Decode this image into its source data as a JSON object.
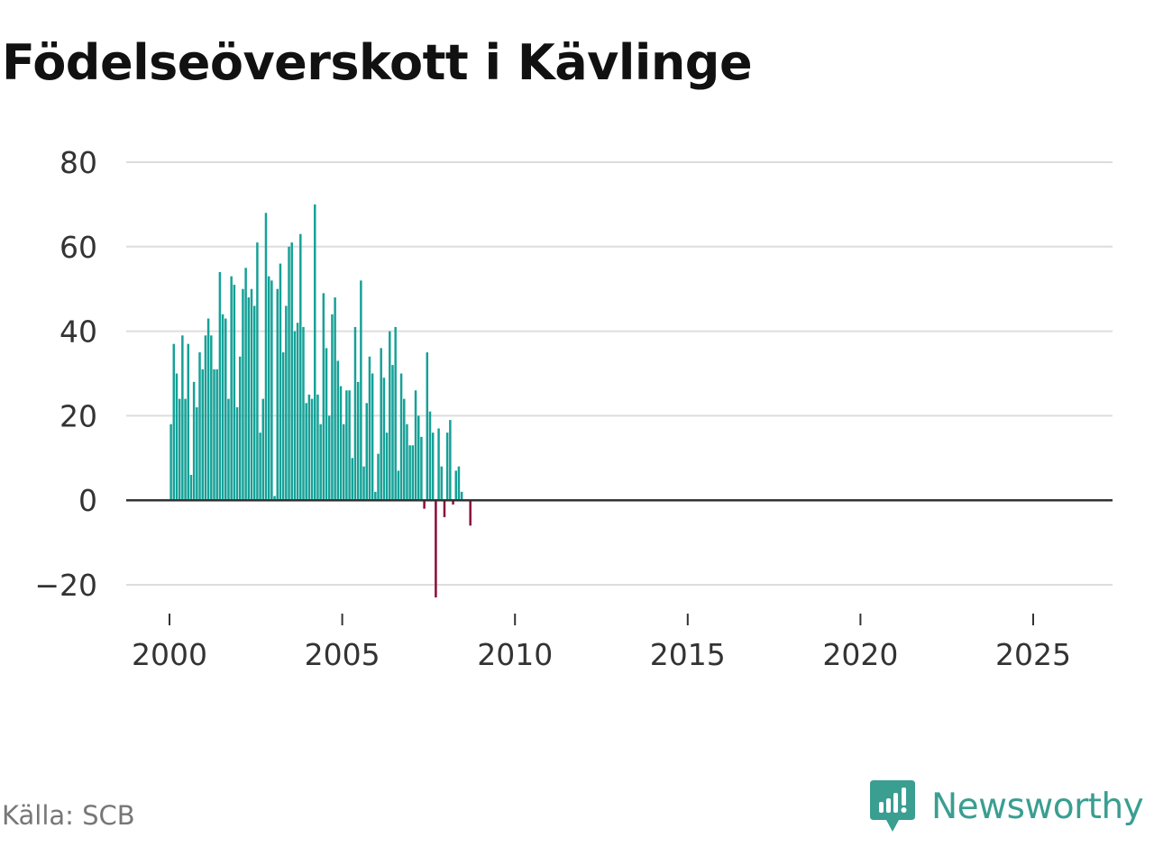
{
  "title": "Födelseöverskott i Kävlinge",
  "source": "Källa: SCB",
  "brand": "Newsworthy",
  "colors": {
    "positive": "#16a197",
    "negative": "#8c0a3a",
    "grid": "#dddddd",
    "zero": "#333333",
    "brand": "#3a9e91"
  },
  "chart_data": {
    "type": "bar",
    "title": "Födelseöverskott i Kävlinge",
    "xlabel": "",
    "ylabel": "",
    "ylim": [
      -25,
      80
    ],
    "xlim": [
      1999.8,
      2027.5
    ],
    "yticks": [
      80,
      60,
      40,
      20,
      0,
      -20
    ],
    "ytick_labels": [
      "80",
      "60",
      "40",
      "20",
      "0",
      "−20"
    ],
    "xticks": [
      2000,
      2005,
      2010,
      2015,
      2020,
      2025
    ],
    "xtick_labels": [
      "2000",
      "2005",
      "2010",
      "2015",
      "2020",
      "2025"
    ],
    "start": "2000-01",
    "frequency": "monthly",
    "grid": true,
    "values": [
      18,
      37,
      30,
      24,
      39,
      24,
      37,
      6,
      28,
      22,
      35,
      31,
      39,
      43,
      39,
      31,
      31,
      54,
      44,
      43,
      24,
      53,
      51,
      22,
      34,
      50,
      55,
      48,
      50,
      46,
      61,
      16,
      24,
      68,
      53,
      52,
      1,
      50,
      56,
      35,
      46,
      60,
      61,
      40,
      42,
      63,
      41,
      23,
      25,
      24,
      70,
      25,
      18,
      49,
      36,
      20,
      44,
      48,
      33,
      27,
      18,
      26,
      26,
      10,
      41,
      28,
      52,
      8,
      23,
      34,
      30,
      2,
      11,
      36,
      29,
      16,
      40,
      32,
      41,
      7,
      30,
      24,
      18,
      13,
      13,
      26,
      20,
      15,
      -2,
      35,
      21,
      16,
      -23,
      17,
      8,
      -4,
      16,
      19,
      -1,
      7,
      8,
      2,
      0,
      0,
      -6
    ]
  }
}
